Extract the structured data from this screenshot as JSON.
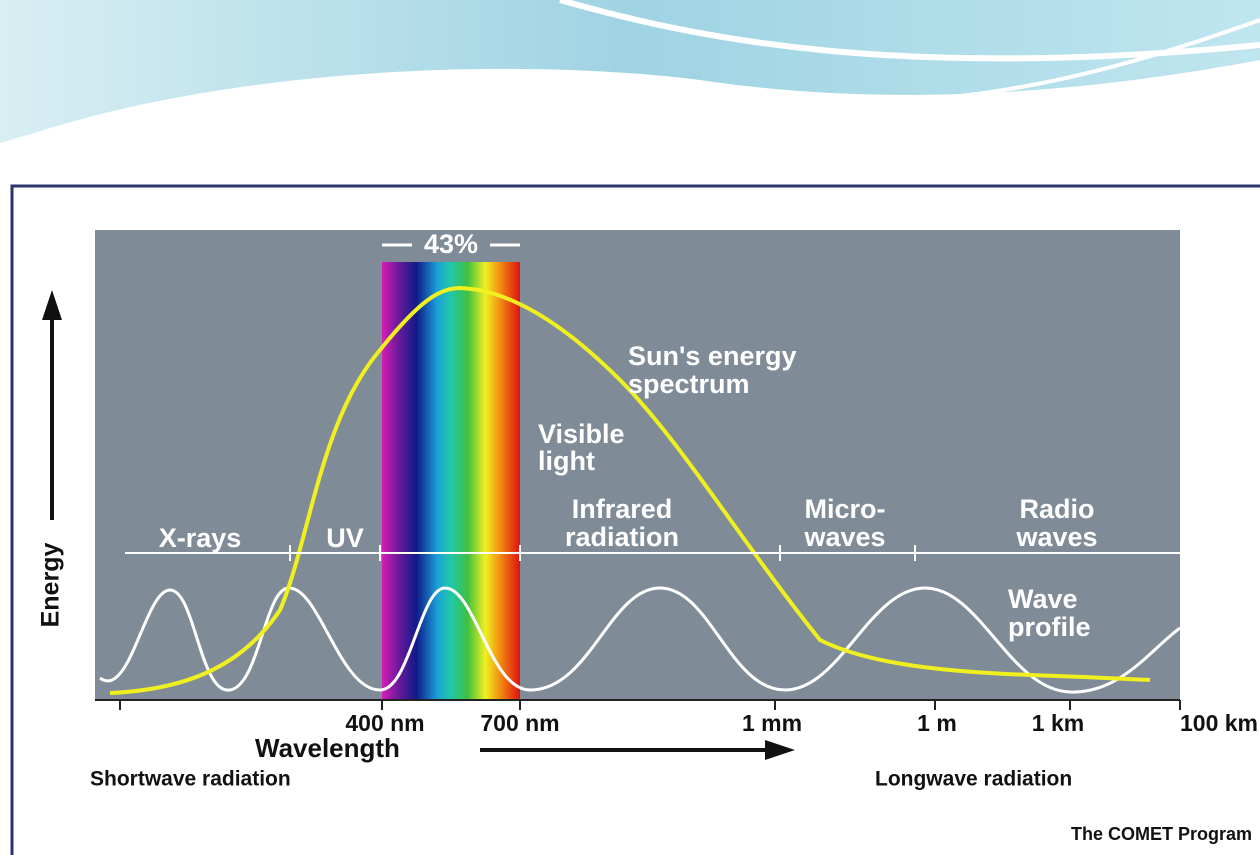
{
  "diagram": {
    "visible_share": "43%",
    "energy_axis_label": "Energy",
    "sun_curve_label": [
      "Sun's energy",
      "spectrum"
    ],
    "visible_label": [
      "Visible",
      "light"
    ],
    "wave_label": [
      "Wave",
      "profile"
    ],
    "bands": [
      {
        "lines": [
          "X-rays"
        ]
      },
      {
        "lines": [
          "UV"
        ]
      },
      {
        "lines": [
          "Infrared",
          "radiation"
        ]
      },
      {
        "lines": [
          "Micro-",
          "waves"
        ]
      },
      {
        "lines": [
          "Radio",
          "waves"
        ]
      }
    ],
    "wavelength_ticks": [
      "400 nm",
      "700 nm",
      "1 mm",
      "1 m",
      "1 km",
      "100 km"
    ],
    "wavelength_axis_label": "Wavelength",
    "shortwave_note": "Shortwave radiation",
    "longwave_note": "Longwave radiation",
    "credit": "The COMET Program"
  }
}
